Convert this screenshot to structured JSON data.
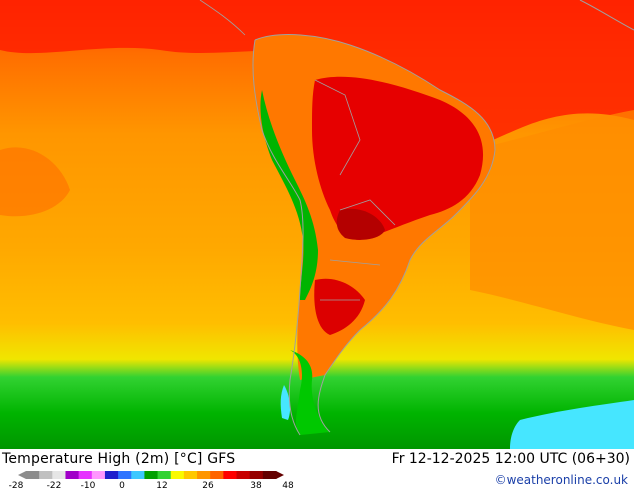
{
  "title": "Temperature High (2m) [°C] GFS",
  "datetime": "Fr 12-12-2025 12:00 UTC (06+30)",
  "credit": "©weatheronline.co.uk",
  "legend": {
    "ticks": [
      "-28",
      "-22",
      "-10",
      "0",
      "12",
      "26",
      "38",
      "48"
    ],
    "colors": [
      "#8c8c8c",
      "#c0c0c0",
      "#e6e6e6",
      "#a000c8",
      "#e632ff",
      "#ff96ff",
      "#1e1ecc",
      "#2e74ff",
      "#3cc8ff",
      "#00a000",
      "#32d232",
      "#fafa00",
      "#ffc800",
      "#ff9600",
      "#ff6400",
      "#ff0000",
      "#c80000",
      "#960000",
      "#640000"
    ]
  },
  "map": {
    "colors": {
      "ocean_warm_orange": "#ff9c00",
      "ocean_light": "#ffb400",
      "hot_red": "#ff1e00",
      "very_hot": "#e60000",
      "green_cold": "#00c800",
      "green_dark": "#009600",
      "cyan_cold": "#46e6ff",
      "border": "#a0a0a0"
    }
  }
}
